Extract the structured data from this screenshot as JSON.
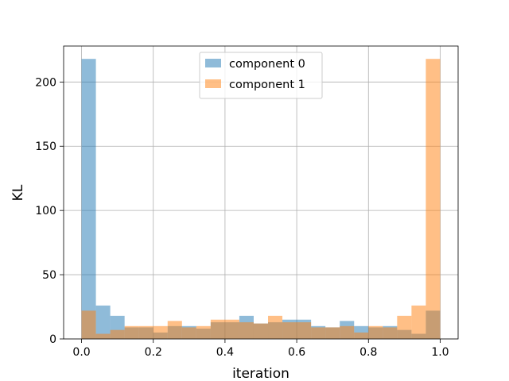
{
  "chart_data": {
    "type": "bar",
    "subtype": "overlapping-histogram",
    "xlabel": "iteration",
    "ylabel": "KL",
    "xlim": [
      -0.05,
      1.05
    ],
    "ylim": [
      0,
      228
    ],
    "xticks": [
      "0.0",
      "0.2",
      "0.4",
      "0.6",
      "0.8",
      "1.0"
    ],
    "xtick_values": [
      0.0,
      0.2,
      0.4,
      0.6,
      0.8,
      1.0
    ],
    "yticks": [
      "0",
      "50",
      "100",
      "150",
      "200"
    ],
    "ytick_values": [
      0,
      50,
      100,
      150,
      200
    ],
    "grid": true,
    "legend": "top-center",
    "bin_edges": [
      0.0,
      0.04,
      0.08,
      0.12,
      0.16,
      0.2,
      0.24,
      0.28,
      0.32,
      0.36,
      0.4,
      0.44,
      0.48,
      0.52,
      0.56,
      0.6,
      0.64,
      0.68,
      0.72,
      0.76,
      0.8,
      0.84,
      0.88,
      0.92,
      0.96,
      1.0
    ],
    "series": [
      {
        "name": "component 0",
        "color": "#1f77b4",
        "values": [
          218,
          26,
          18,
          9,
          9,
          5,
          10,
          10,
          8,
          13,
          13,
          18,
          12,
          13,
          15,
          15,
          10,
          9,
          14,
          10,
          9,
          10,
          7,
          4,
          22
        ]
      },
      {
        "name": "component 1",
        "color": "#ff7f0e",
        "values": [
          22,
          4,
          7,
          10,
          10,
          10,
          14,
          9,
          10,
          15,
          15,
          13,
          12,
          18,
          13,
          13,
          9,
          9,
          10,
          5,
          10,
          9,
          18,
          26,
          218
        ]
      }
    ]
  }
}
